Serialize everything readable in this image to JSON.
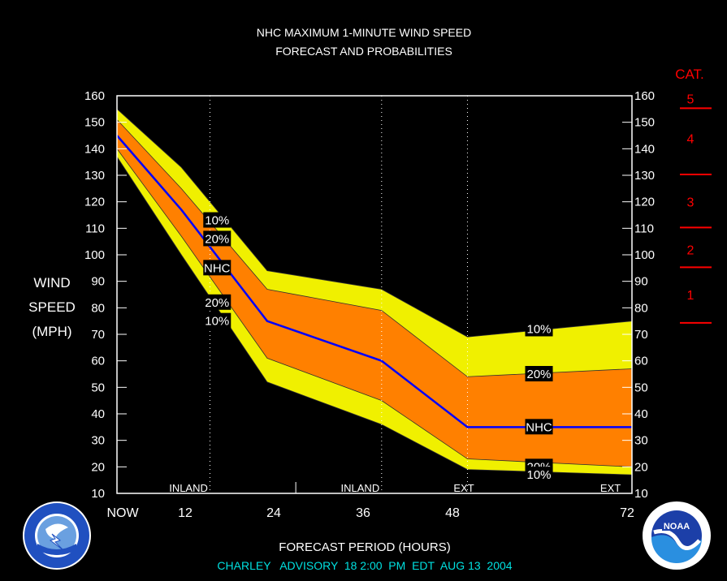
{
  "title_line1": "NHC MAXIMUM 1-MINUTE WIND SPEED",
  "title_line2": "FORECAST AND PROBABILITIES",
  "ylabel_lines": [
    "WIND",
    "SPEED",
    "(MPH)"
  ],
  "xlabel": "FORECAST PERIOD (HOURS)",
  "advisory_text": "CHARLEY   ADVISORY  18 2:00  PM  EDT  AUG 13  2004",
  "category_header": "CAT.",
  "colors": {
    "background": "#000000",
    "yellow_band": "#f0f000",
    "orange_band": "#ff8000",
    "nhc_line": "#0000ff",
    "category": "#ff0000",
    "advisory_text": "#00e0e0",
    "logo_blue": "#2050c0"
  },
  "logos": [
    "nws-logo",
    "noaa-logo"
  ],
  "chart_data": {
    "type": "area",
    "x_tick_labels": [
      "NOW",
      "12",
      "24",
      "36",
      "48",
      "72"
    ],
    "x_tick_values": [
      0,
      12,
      24,
      36,
      48,
      72
    ],
    "xlim": [
      -1,
      71
    ],
    "ylim": [
      10,
      160
    ],
    "y_ticks": [
      10,
      20,
      30,
      40,
      50,
      60,
      70,
      80,
      90,
      100,
      110,
      120,
      130,
      140,
      150,
      160
    ],
    "grid": "dotted vertical lines at 12, 36, 48",
    "segment_labels": [
      {
        "x": 9,
        "text": "INLAND"
      },
      {
        "x": 33,
        "text": "INLAND"
      },
      {
        "x": 47.5,
        "text": "EXT"
      },
      {
        "x": 68,
        "text": "EXT"
      }
    ],
    "x": [
      -1,
      8,
      20,
      36,
      48,
      71
    ],
    "series": [
      {
        "name": "10%",
        "values": [
          155,
          133,
          94,
          87,
          69,
          75
        ]
      },
      {
        "name": "20%",
        "values": [
          151,
          125,
          87,
          79,
          54,
          57
        ]
      },
      {
        "name": "NHC",
        "values": [
          145,
          117,
          75,
          60,
          35,
          35
        ]
      },
      {
        "name": "20%",
        "values": [
          140,
          107,
          61,
          45,
          23,
          20
        ]
      },
      {
        "name": "10%",
        "values": [
          137,
          100,
          52,
          36,
          19,
          17
        ]
      }
    ],
    "band_labels": [
      {
        "text": "10%",
        "x": 13,
        "y": 113
      },
      {
        "text": "20%",
        "x": 13,
        "y": 106
      },
      {
        "text": "NHC",
        "x": 13,
        "y": 95
      },
      {
        "text": "20%",
        "x": 13,
        "y": 82
      },
      {
        "text": "10%",
        "x": 13,
        "y": 75
      },
      {
        "text": "10%",
        "x": 58,
        "y": 72
      },
      {
        "text": "20%",
        "x": 58,
        "y": 55
      },
      {
        "text": "NHC",
        "x": 58,
        "y": 35
      },
      {
        "text": "20%",
        "x": 58,
        "y": 20
      },
      {
        "text": "10%",
        "x": 58,
        "y": 17
      }
    ],
    "categories": [
      {
        "label": "5",
        "boundary": 155
      },
      {
        "label": "4",
        "boundary": 130
      },
      {
        "label": "3",
        "boundary": 110
      },
      {
        "label": "2",
        "boundary": 95
      },
      {
        "label": "1",
        "boundary": 74
      }
    ]
  }
}
